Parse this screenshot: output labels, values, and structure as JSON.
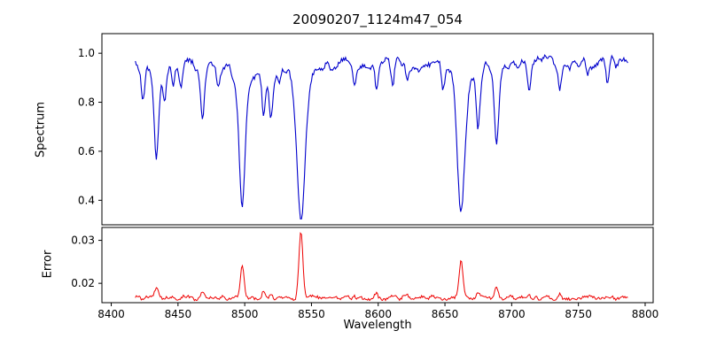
{
  "chart_data": {
    "type": "line",
    "title": "20090207_1124m47_054",
    "xlabel": "Wavelength",
    "x_range": [
      8418,
      8787
    ],
    "x_step": 0.75,
    "xlim": [
      8393,
      8806
    ],
    "xticks": [
      8400,
      8450,
      8500,
      8550,
      8600,
      8650,
      8700,
      8750,
      8800
    ],
    "xtick_labels": [
      "8400",
      "8450",
      "8500",
      "8550",
      "8600",
      "8650",
      "8700",
      "8750",
      "8800"
    ],
    "noise_seed": 42,
    "legend": "none",
    "grid": false,
    "panels": [
      {
        "ylabel": "Spectrum",
        "color": "#0000cc",
        "ylim": [
          0.3,
          1.08
        ],
        "yticks": [
          0.4,
          0.6,
          0.8,
          1.0
        ],
        "ytick_labels": [
          "0.4",
          "0.6",
          "0.8",
          "1.0"
        ],
        "continuum": 0.965,
        "noise_coarse": 0.028,
        "noise_fine": 0.009,
        "clip_max": 1.035,
        "absorption_lines": [
          {
            "x": 8423.9,
            "depth": 0.16,
            "width": 1.2
          },
          {
            "x": 8433.9,
            "depth": 0.375,
            "width": 1.6
          },
          {
            "x": 8440.0,
            "depth": 0.13,
            "width": 1.1
          },
          {
            "x": 8446.4,
            "depth": 0.11,
            "width": 1.0
          },
          {
            "x": 8452.0,
            "depth": 0.08,
            "width": 1.0
          },
          {
            "x": 8468.4,
            "depth": 0.21,
            "width": 1.4
          },
          {
            "x": 8480.0,
            "depth": 0.07,
            "width": 1.0
          },
          {
            "x": 8498.0,
            "depth": 0.555,
            "width": 2.2
          },
          {
            "x": 8514.1,
            "depth": 0.2,
            "width": 1.3
          },
          {
            "x": 8519.6,
            "depth": 0.18,
            "width": 1.3
          },
          {
            "x": 8526.0,
            "depth": 0.08,
            "width": 1.0
          },
          {
            "x": 8542.1,
            "depth": 0.635,
            "width": 2.8
          },
          {
            "x": 8582.3,
            "depth": 0.08,
            "width": 1.0
          },
          {
            "x": 8598.8,
            "depth": 0.12,
            "width": 1.1
          },
          {
            "x": 8611.0,
            "depth": 0.07,
            "width": 1.0
          },
          {
            "x": 8621.6,
            "depth": 0.09,
            "width": 1.0
          },
          {
            "x": 8648.5,
            "depth": 0.07,
            "width": 1.0
          },
          {
            "x": 8662.1,
            "depth": 0.615,
            "width": 2.6
          },
          {
            "x": 8674.7,
            "depth": 0.25,
            "width": 1.3
          },
          {
            "x": 8688.6,
            "depth": 0.34,
            "width": 1.5
          },
          {
            "x": 8713.2,
            "depth": 0.1,
            "width": 1.0
          },
          {
            "x": 8736.0,
            "depth": 0.12,
            "width": 1.1
          },
          {
            "x": 8757.0,
            "depth": 0.08,
            "width": 1.0
          },
          {
            "x": 8772.0,
            "depth": 0.07,
            "width": 1.0
          }
        ]
      },
      {
        "ylabel": "Error",
        "color": "#ee0000",
        "ylim": [
          0.0155,
          0.033
        ],
        "yticks": [
          0.02,
          0.03
        ],
        "ytick_labels": [
          "0.02",
          "0.03"
        ],
        "baseline": 0.0166,
        "noise_coarse": 0.0005,
        "noise_fine": 0.0003,
        "spikes": [
          {
            "x": 8421.0,
            "height": 0.0008,
            "width": 0.9
          },
          {
            "x": 8433.9,
            "height": 0.0022,
            "width": 1.5
          },
          {
            "x": 8468.4,
            "height": 0.0013,
            "width": 1.3
          },
          {
            "x": 8498.0,
            "height": 0.0072,
            "width": 1.4
          },
          {
            "x": 8514.1,
            "height": 0.0016,
            "width": 1.2
          },
          {
            "x": 8519.6,
            "height": 0.0012,
            "width": 1.2
          },
          {
            "x": 8542.1,
            "height": 0.0154,
            "width": 1.5
          },
          {
            "x": 8582.3,
            "height": 0.0008,
            "width": 1.0
          },
          {
            "x": 8598.8,
            "height": 0.001,
            "width": 1.0
          },
          {
            "x": 8621.6,
            "height": 0.0007,
            "width": 1.0
          },
          {
            "x": 8662.1,
            "height": 0.009,
            "width": 1.5
          },
          {
            "x": 8674.7,
            "height": 0.0013,
            "width": 1.2
          },
          {
            "x": 8688.6,
            "height": 0.0022,
            "width": 1.3
          },
          {
            "x": 8713.2,
            "height": 0.0008,
            "width": 1.0
          },
          {
            "x": 8736.0,
            "height": 0.001,
            "width": 1.1
          }
        ]
      }
    ]
  }
}
